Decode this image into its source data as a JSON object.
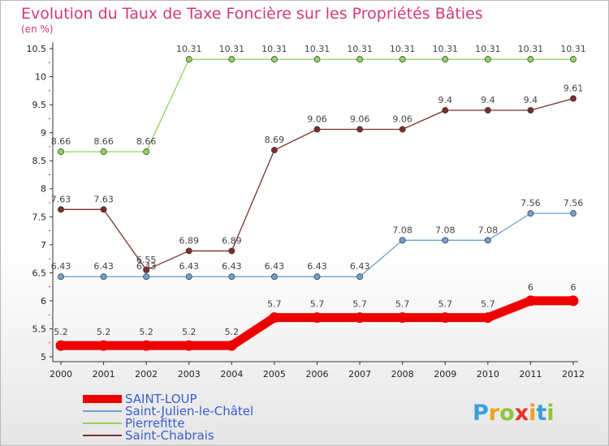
{
  "chart_data": {
    "type": "line",
    "title": "Evolution du Taux de Taxe Foncière sur les Propriétés Bâties",
    "subtitle": "(en %)",
    "x": [
      "2000",
      "2001",
      "2002",
      "2003",
      "2004",
      "2005",
      "2006",
      "2007",
      "2008",
      "2009",
      "2010",
      "2011",
      "2012"
    ],
    "ylim": [
      5,
      10.5
    ],
    "yticks": [
      "5",
      "5.5",
      "6",
      "6.5",
      "7",
      "7.5",
      "8",
      "8.5",
      "9",
      "9.5",
      "10",
      "10.5"
    ],
    "series": [
      {
        "name": "SAINT-LOUP",
        "color": "#ee0000",
        "values": [
          5.2,
          5.2,
          5.2,
          5.2,
          5.2,
          5.7,
          5.7,
          5.7,
          5.7,
          5.7,
          5.7,
          6,
          6
        ],
        "labels": [
          "5.2",
          "5.2",
          "5.2",
          "5.2",
          "5.2",
          "5.7",
          "5.7",
          "5.7",
          "5.7",
          "5.7",
          "5.7",
          "6",
          "6"
        ]
      },
      {
        "name": "Saint-Julien-le-Châtel",
        "color": "#6fa0d0",
        "values": [
          6.43,
          6.43,
          6.43,
          6.43,
          6.43,
          6.43,
          6.43,
          6.43,
          7.08,
          7.08,
          7.08,
          7.56,
          7.56
        ],
        "labels": [
          "6.43",
          "6.43",
          "6.43",
          "6.43",
          "6.43",
          "6.43",
          "6.43",
          "6.43",
          "7.08",
          "7.08",
          "7.08",
          "7.56",
          "7.56"
        ]
      },
      {
        "name": "Pierrefitte",
        "color": "#8fd35a",
        "values": [
          8.66,
          8.66,
          8.66,
          10.31,
          10.31,
          10.31,
          10.31,
          10.31,
          10.31,
          10.31,
          10.31,
          10.31,
          10.31
        ],
        "labels": [
          "8.66",
          "8.66",
          "8.66",
          "10.31",
          "10.31",
          "10.31",
          "10.31",
          "10.31",
          "10.31",
          "10.31",
          "10.31",
          "10.31",
          "10.31"
        ]
      },
      {
        "name": "Saint-Chabrais",
        "color": "#7a2f2f",
        "values": [
          7.63,
          7.63,
          6.55,
          6.89,
          6.89,
          8.69,
          9.06,
          9.06,
          9.06,
          9.4,
          9.4,
          9.4,
          9.61
        ],
        "labels": [
          "7.63",
          "7.63",
          "6.55",
          "6.89",
          "6.89",
          "8.69",
          "9.06",
          "9.06",
          "9.06",
          "9.4",
          "9.4",
          "9.4",
          "9.61"
        ]
      }
    ],
    "legend_position": "bottom-left",
    "grid": false
  },
  "logo": {
    "letters": [
      "P",
      "r",
      "o",
      "x",
      "i",
      "t",
      "i"
    ],
    "colors": [
      "#3aa0d8",
      "#f0a020",
      "#8cc63f",
      "#e8302a",
      "#f0a020",
      "#3aa0d8",
      "#8cc63f"
    ]
  }
}
